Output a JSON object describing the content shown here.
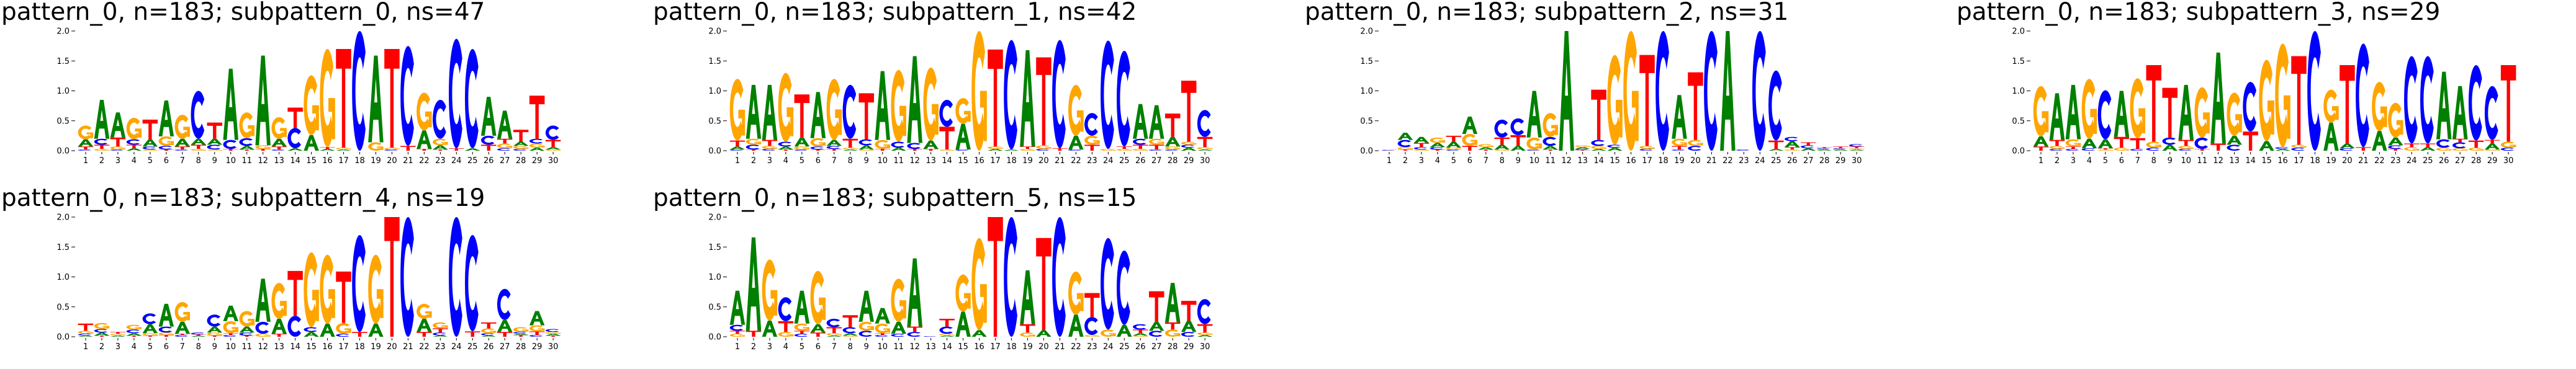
{
  "colors": {
    "A": "#008000",
    "C": "#0000ff",
    "G": "#ffa500",
    "T": "#ff0000"
  },
  "chart_data": [
    {
      "type": "logo",
      "title": "pattern_0, n=183; subpattern_0, ns=47",
      "ylim": [
        0,
        2
      ],
      "yticks": [
        "0.0",
        "0.5",
        "1.0",
        "1.5",
        "2.0"
      ],
      "xticks": [
        "1",
        "2",
        "3",
        "4",
        "5",
        "6",
        "7",
        "8",
        "9",
        "10",
        "11",
        "12",
        "13",
        "14",
        "15",
        "16",
        "17",
        "18",
        "19",
        "20",
        "21",
        "22",
        "23",
        "24",
        "25",
        "26",
        "27",
        "28",
        "29",
        "30"
      ],
      "positions": [
        {
          "C": 0.02,
          "T": 0.05,
          "A": 0.12,
          "G": 0.23
        },
        {
          "G": 0.03,
          "T": 0.07,
          "C": 0.1,
          "A": 0.65
        },
        {
          "C": 0.02,
          "G": 0.05,
          "T": 0.15,
          "A": 0.42
        },
        {
          "A": 0.04,
          "T": 0.06,
          "C": 0.09,
          "G": 0.36
        },
        {
          "G": 0.02,
          "C": 0.05,
          "A": 0.12,
          "T": 0.33
        },
        {
          "T": 0.02,
          "C": 0.06,
          "G": 0.16,
          "A": 0.6
        },
        {
          "C": 0.02,
          "T": 0.05,
          "A": 0.13,
          "G": 0.4
        },
        {
          "G": 0.03,
          "T": 0.07,
          "A": 0.1,
          "C": 0.8
        },
        {
          "G": 0.02,
          "C": 0.08,
          "A": 0.1,
          "T": 0.27
        },
        {
          "T": 0.03,
          "C": 0.15,
          "A": 1.19
        },
        {
          "T": 0.02,
          "A": 0.06,
          "C": 0.13,
          "G": 0.43
        },
        {
          "T": 0.03,
          "G": 0.06,
          "A": 1.5
        },
        {
          "C": 0.02,
          "T": 0.05,
          "A": 0.13,
          "G": 0.36
        },
        {
          "A": 0.04,
          "C": 0.34,
          "T": 0.34
        },
        {
          "A": 0.26,
          "G": 1.0
        },
        {
          "A": 0.03,
          "T": 0.03,
          "G": 1.64
        },
        {
          "A": 0.02,
          "G": 0.03,
          "T": 1.65
        },
        {
          "C": 2.0
        },
        {
          "G": 0.14,
          "A": 1.45
        },
        {
          "C": 0.02,
          "G": 0.03,
          "T": 1.65
        },
        {
          "T": 0.08,
          "C": 1.67
        },
        {
          "T": 0.03,
          "A": 0.31,
          "G": 0.63
        },
        {
          "T": 0.02,
          "A": 0.07,
          "G": 0.11,
          "C": 0.65
        },
        {
          "T": 0.04,
          "C": 1.83
        },
        {
          "A": 0.04,
          "C": 1.66
        },
        {
          "T": 0.1,
          "C": 0.15,
          "A": 0.65
        },
        {
          "C": 0.04,
          "G": 0.08,
          "T": 0.08,
          "A": 0.47
        },
        {
          "C": 0.03,
          "G": 0.05,
          "A": 0.07,
          "T": 0.2
        },
        {
          "A": 0.05,
          "G": 0.07,
          "C": 0.08,
          "T": 0.72
        },
        {
          "G": 0.02,
          "A": 0.04,
          "T": 0.12,
          "C": 0.24
        }
      ]
    },
    {
      "type": "logo",
      "title": "pattern_0, n=183; subpattern_1, ns=42",
      "ylim": [
        0,
        2
      ],
      "yticks": [
        "0.0",
        "0.5",
        "1.0",
        "1.5",
        "2.0"
      ],
      "xticks": [
        "1",
        "2",
        "3",
        "4",
        "5",
        "6",
        "7",
        "8",
        "9",
        "10",
        "11",
        "12",
        "13",
        "14",
        "15",
        "16",
        "17",
        "18",
        "19",
        "20",
        "21",
        "22",
        "23",
        "24",
        "25",
        "26",
        "27",
        "28",
        "29",
        "30"
      ],
      "positions": [
        {
          "C": 0.02,
          "A": 0.05,
          "T": 0.1,
          "G": 1.03
        },
        {
          "T": 0.02,
          "C": 0.08,
          "G": 0.1,
          "A": 0.9
        },
        {
          "C": 0.03,
          "G": 0.05,
          "T": 0.1,
          "A": 0.92
        },
        {
          "T": 0.02,
          "A": 0.05,
          "C": 0.08,
          "G": 1.15
        },
        {
          "C": 0.02,
          "G": 0.05,
          "A": 0.15,
          "T": 0.72
        },
        {
          "T": 0.02,
          "C": 0.05,
          "G": 0.14,
          "A": 0.77
        },
        {
          "T": 0.03,
          "C": 0.05,
          "A": 0.1,
          "G": 1.02
        },
        {
          "A": 0.02,
          "G": 0.03,
          "T": 0.15,
          "C": 0.9
        },
        {
          "G": 0.02,
          "A": 0.07,
          "C": 0.1,
          "T": 0.77
        },
        {
          "T": 0.03,
          "G": 0.15,
          "A": 1.15
        },
        {
          "A": 0.05,
          "C": 0.1,
          "G": 1.2
        },
        {
          "T": 0.03,
          "C": 0.1,
          "A": 1.45
        },
        {
          "T": 0.03,
          "A": 0.14,
          "G": 1.22
        },
        {
          "G": 0.02,
          "T": 0.38,
          "C": 0.45
        },
        {
          "C": 0.02,
          "A": 0.43,
          "G": 0.43
        },
        {
          "G": 2.0
        },
        {
          "A": 0.03,
          "G": 0.04,
          "T": 1.62
        },
        {
          "A": 0.02,
          "C": 1.83
        },
        {
          "G": 0.03,
          "T": 0.04,
          "A": 1.61
        },
        {
          "C": 0.03,
          "G": 0.06,
          "T": 1.47
        },
        {
          "T": 0.04,
          "C": 1.81
        },
        {
          "C": 0.02,
          "A": 0.23,
          "G": 0.85
        },
        {
          "T": 0.1,
          "G": 0.15,
          "C": 0.38
        },
        {
          "G": 0.03,
          "C": 1.81
        },
        {
          "G": 0.03,
          "T": 0.04,
          "C": 1.6
        },
        {
          "G": 0.03,
          "T": 0.07,
          "C": 0.1,
          "A": 0.58
        },
        {
          "C": 0.02,
          "T": 0.08,
          "G": 0.1,
          "A": 0.56
        },
        {
          "C": 0.02,
          "G": 0.05,
          "A": 0.16,
          "T": 0.39
        },
        {
          "A": 0.05,
          "C": 0.05,
          "G": 0.05,
          "T": 1.02
        },
        {
          "A": 0.02,
          "G": 0.04,
          "T": 0.17,
          "C": 0.45
        }
      ]
    },
    {
      "type": "logo",
      "title": "pattern_0, n=183; subpattern_2, ns=31",
      "ylim": [
        0,
        2
      ],
      "yticks": [
        "0.0",
        "0.5",
        "1.0",
        "1.5",
        "2.0"
      ],
      "xticks": [
        "1",
        "2",
        "3",
        "4",
        "5",
        "6",
        "7",
        "8",
        "9",
        "10",
        "11",
        "12",
        "13",
        "14",
        "15",
        "16",
        "17",
        "18",
        "19",
        "20",
        "21",
        "22",
        "23",
        "24",
        "25",
        "26",
        "27",
        "28",
        "29",
        "30"
      ],
      "positions": [
        {
          "C": 0.01,
          "G": 0.01
        },
        {
          "T": 0.02,
          "G": 0.04,
          "C": 0.12,
          "A": 0.12
        },
        {
          "G": 0.02,
          "C": 0.04,
          "T": 0.07,
          "A": 0.1
        },
        {
          "T": 0.02,
          "C": 0.04,
          "A": 0.07,
          "G": 0.09
        },
        {
          "C": 0.02,
          "G": 0.03,
          "A": 0.1,
          "T": 0.1
        },
        {
          "T": 0.08,
          "G": 0.2,
          "A": 0.29
        },
        {
          "T": 0.02,
          "A": 0.04,
          "G": 0.05
        },
        {
          "G": 0.02,
          "A": 0.08,
          "T": 0.12,
          "C": 0.3
        },
        {
          "A": 0.08,
          "T": 0.18,
          "C": 0.28
        },
        {
          "C": 0.02,
          "G": 0.2,
          "A": 0.78
        },
        {
          "T": 0.02,
          "A": 0.06,
          "C": 0.15,
          "G": 0.4
        },
        {
          "A": 2.0
        },
        {
          "T": 0.01,
          "C": 0.02,
          "A": 0.03,
          "G": 0.03
        },
        {
          "A": 0.03,
          "G": 0.05,
          "C": 0.1,
          "T": 0.84
        },
        {
          "A": 0.05,
          "C": 0.05,
          "G": 1.5
        },
        {
          "G": 2.0
        },
        {
          "C": 0.03,
          "G": 0.05,
          "T": 1.52
        },
        {
          "C": 2.0
        },
        {
          "C": 0.02,
          "T": 0.06,
          "G": 0.12,
          "A": 0.73
        },
        {
          "C": 0.08,
          "G": 0.1,
          "T": 1.13
        },
        {
          "C": 2.0
        },
        {
          "A": 2.0
        },
        {
          "C": 0.02
        },
        {
          "C": 2.0
        },
        {
          "A": 0.03,
          "T": 0.14,
          "C": 1.17
        },
        {
          "G": 0.02,
          "T": 0.04,
          "A": 0.1,
          "C": 0.07
        },
        {
          "A": 0.04,
          "C": 0.05,
          "T": 0.05
        },
        {
          "A": 0.02,
          "C": 0.02,
          "T": 0.02
        },
        {
          "A": 0.02,
          "C": 0.02,
          "T": 0.03
        },
        {
          "A": 0.02,
          "G": 0.02,
          "T": 0.03,
          "C": 0.04
        }
      ]
    },
    {
      "type": "logo",
      "title": "pattern_0, n=183; subpattern_3, ns=29",
      "ylim": [
        0,
        2
      ],
      "yticks": [
        "0.0",
        "0.5",
        "1.0",
        "1.5",
        "2.0"
      ],
      "xticks": [
        "1",
        "2",
        "3",
        "4",
        "5",
        "6",
        "7",
        "8",
        "9",
        "10",
        "11",
        "12",
        "13",
        "14",
        "15",
        "16",
        "17",
        "18",
        "19",
        "20",
        "21",
        "22",
        "23",
        "24",
        "25",
        "26",
        "27",
        "28",
        "29",
        "30"
      ],
      "positions": [
        {
          "T": 0.07,
          "A": 0.17,
          "G": 0.84
        },
        {
          "C": 0.03,
          "G": 0.05,
          "T": 0.1,
          "A": 0.78
        },
        {
          "C": 0.03,
          "T": 0.04,
          "G": 0.12,
          "A": 0.91
        },
        {
          "C": 0.04,
          "A": 0.16,
          "G": 1.0
        },
        {
          "G": 0.02,
          "T": 0.02,
          "A": 0.15,
          "C": 0.82
        },
        {
          "G": 0.05,
          "T": 0.18,
          "A": 0.77
        },
        {
          "C": 0.03,
          "T": 0.18,
          "G": 1.0
        },
        {
          "C": 0.05,
          "G": 0.1,
          "T": 1.28
        },
        {
          "A": 0.1,
          "C": 0.12,
          "T": 0.83
        },
        {
          "C": 0.03,
          "G": 0.05,
          "T": 0.1,
          "A": 0.92
        },
        {
          "T": 0.03,
          "C": 0.19,
          "G": 0.84
        },
        {
          "T": 0.12,
          "A": 1.52
        },
        {
          "C": 0.1,
          "A": 0.15,
          "G": 0.72
        },
        {
          "T": 0.32,
          "C": 0.83
        },
        {
          "A": 0.16,
          "G": 1.36
        },
        {
          "A": 0.03,
          "C": 0.03,
          "G": 1.73
        },
        {
          "C": 0.05,
          "G": 0.05,
          "T": 1.48
        },
        {
          "C": 2.0
        },
        {
          "A": 0.47,
          "G": 0.55
        },
        {
          "C": 0.04,
          "A": 0.08,
          "T": 1.31
        },
        {
          "T": 0.06,
          "C": 1.73
        },
        {
          "A": 0.33,
          "G": 0.82
        },
        {
          "T": 0.03,
          "C": 0.06,
          "A": 0.13,
          "G": 0.58
        },
        {
          "G": 0.06,
          "T": 0.06,
          "C": 1.46
        },
        {
          "A": 0.06,
          "T": 0.06,
          "C": 1.46
        },
        {
          "G": 0.05,
          "C": 0.14,
          "A": 1.13
        },
        {
          "G": 0.04,
          "C": 0.1,
          "T": 0.06,
          "A": 0.88
        },
        {
          "G": 0.05,
          "T": 0.12,
          "C": 1.26
        },
        {
          "G": 0.02,
          "A": 0.1,
          "T": 0.06,
          "C": 0.9
        },
        {
          "C": 0.05,
          "G": 0.1,
          "T": 1.28
        }
      ]
    },
    {
      "type": "logo",
      "title": "pattern_0, n=183; subpattern_4, ns=19",
      "ylim": [
        0,
        2
      ],
      "yticks": [
        "0.0",
        "0.5",
        "1.0",
        "1.5",
        "2.0"
      ],
      "xticks": [
        "1",
        "2",
        "3",
        "4",
        "5",
        "6",
        "7",
        "8",
        "9",
        "10",
        "11",
        "12",
        "13",
        "14",
        "15",
        "16",
        "17",
        "18",
        "19",
        "20",
        "21",
        "22",
        "23",
        "24",
        "25",
        "26",
        "27",
        "28",
        "29",
        "30"
      ],
      "positions": [
        {
          "A": 0.02,
          "C": 0.03,
          "G": 0.05,
          "T": 0.12
        },
        {
          "T": 0.02,
          "A": 0.05,
          "C": 0.06,
          "G": 0.1
        },
        {
          "A": 0.02,
          "G": 0.03,
          "T": 0.03
        },
        {
          "T": 0.02,
          "A": 0.04,
          "C": 0.06,
          "G": 0.08
        },
        {
          "T": 0.02,
          "G": 0.04,
          "A": 0.15,
          "C": 0.18
        },
        {
          "T": 0.03,
          "G": 0.04,
          "C": 0.1,
          "A": 0.38
        },
        {
          "C": 0.03,
          "T": 0.02,
          "A": 0.2,
          "G": 0.33
        },
        {
          "A": 0.02,
          "T": 0.02,
          "C": 0.03
        },
        {
          "T": 0.02,
          "G": 0.05,
          "A": 0.1,
          "C": 0.2
        },
        {
          "C": 0.03,
          "T": 0.03,
          "G": 0.2,
          "A": 0.26
        },
        {
          "T": 0.02,
          "C": 0.05,
          "A": 0.1,
          "G": 0.26
        },
        {
          "G": 0.05,
          "C": 0.2,
          "A": 0.72
        },
        {
          "T": 0.05,
          "A": 0.25,
          "G": 0.6
        },
        {
          "C": 0.35,
          "T": 0.75
        },
        {
          "A": 0.08,
          "C": 0.08,
          "G": 1.25
        },
        {
          "A": 0.22,
          "G": 1.15
        },
        {
          "C": 0.05,
          "G": 0.18,
          "T": 0.86
        },
        {
          "T": 0.08,
          "C": 1.62
        },
        {
          "A": 0.22,
          "G": 1.15
        },
        {
          "T": 2.0
        },
        {
          "C": 2.0
        },
        {
          "T": 0.08,
          "A": 0.22,
          "G": 0.25
        },
        {
          "A": 0.02,
          "C": 0.05,
          "T": 0.07,
          "G": 0.1
        },
        {
          "C": 2.0
        },
        {
          "T": 0.09,
          "C": 1.61
        },
        {
          "A": 0.02,
          "C": 0.04,
          "G": 0.08,
          "T": 0.1
        },
        {
          "T": 0.08,
          "A": 0.2,
          "C": 0.52
        },
        {
          "T": 0.03,
          "A": 0.02,
          "C": 0.03,
          "G": 0.08
        },
        {
          "C": 0.03,
          "T": 0.06,
          "G": 0.1,
          "A": 0.24
        },
        {
          "T": 0.02,
          "A": 0.03,
          "G": 0.03,
          "C": 0.05
        }
      ]
    },
    {
      "type": "logo",
      "title": "pattern_0, n=183; subpattern_5, ns=15",
      "ylim": [
        0,
        2
      ],
      "yticks": [
        "0.0",
        "0.5",
        "1.0",
        "1.5",
        "2.0"
      ],
      "xticks": [
        "1",
        "2",
        "3",
        "4",
        "5",
        "6",
        "7",
        "8",
        "9",
        "10",
        "11",
        "12",
        "13",
        "14",
        "15",
        "16",
        "17",
        "18",
        "19",
        "20",
        "21",
        "22",
        "23",
        "24",
        "25",
        "26",
        "27",
        "28",
        "29",
        "30"
      ],
      "positions": [
        {
          "G": 0.05,
          "T": 0.05,
          "C": 0.1,
          "A": 0.57
        },
        {
          "T": 0.1,
          "A": 1.56
        },
        {
          "A": 0.27,
          "G": 1.02
        },
        {
          "G": 0.08,
          "T": 0.18,
          "C": 0.4
        },
        {
          "C": 0.05,
          "T": 0.05,
          "G": 0.12,
          "A": 0.55
        },
        {
          "T": 0.07,
          "A": 0.14,
          "G": 0.89
        },
        {
          "A": 0.02,
          "G": 0.04,
          "T": 0.1,
          "C": 0.14
        },
        {
          "G": 0.02,
          "A": 0.04,
          "C": 0.1,
          "T": 0.2
        },
        {
          "C": 0.1,
          "G": 0.15,
          "A": 0.52
        },
        {
          "C": 0.03,
          "T": 0.03,
          "G": 0.16,
          "A": 0.26
        },
        {
          "C": 0.05,
          "A": 0.2,
          "G": 0.72
        },
        {
          "C": 0.08,
          "T": 0.09,
          "A": 1.14
        },
        {
          "C": 0.01
        },
        {
          "A": 0.02,
          "G": 0.03,
          "C": 0.12,
          "T": 0.13
        },
        {
          "A": 0.42,
          "G": 0.62
        },
        {
          "A": 0.11,
          "G": 1.54
        },
        {
          "T": 2.0
        },
        {
          "C": 2.0
        },
        {
          "G": 0.07,
          "T": 0.14,
          "A": 0.9
        },
        {
          "A": 0.11,
          "T": 1.54
        },
        {
          "C": 2.0
        },
        {
          "A": 0.37,
          "G": 0.72
        },
        {
          "G": 0.03,
          "C": 0.3,
          "T": 0.4
        },
        {
          "G": 0.12,
          "C": 1.53
        },
        {
          "A": 0.2,
          "C": 1.24
        },
        {
          "G": 0.02,
          "A": 0.04,
          "T": 0.06,
          "C": 0.09
        },
        {
          "C": 0.1,
          "A": 0.15,
          "T": 0.51
        },
        {
          "G": 0.12,
          "T": 0.12,
          "A": 0.66
        },
        {
          "C": 0.08,
          "A": 0.19,
          "T": 0.33
        },
        {
          "A": 0.03,
          "G": 0.04,
          "T": 0.14,
          "C": 0.42
        }
      ]
    }
  ]
}
